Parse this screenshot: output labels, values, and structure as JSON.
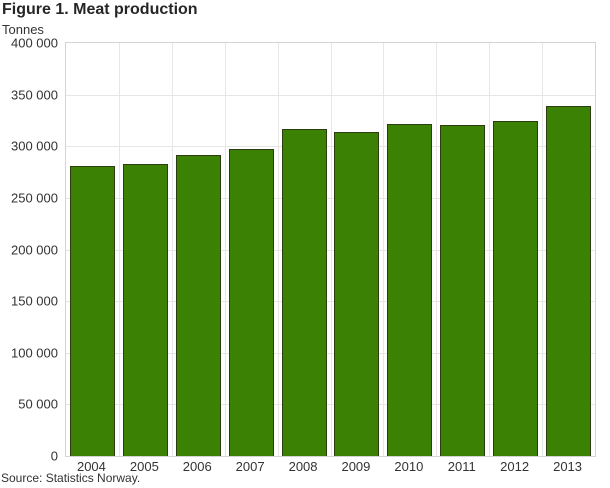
{
  "figure": {
    "title": "Figure 1. Meat production",
    "unit_label": "Tonnes",
    "source": "Source: Statistics Norway."
  },
  "chart_data": {
    "type": "bar",
    "title": "Figure 1. Meat production",
    "xlabel": "",
    "ylabel": "Tonnes",
    "categories": [
      "2004",
      "2005",
      "2006",
      "2007",
      "2008",
      "2009",
      "2010",
      "2011",
      "2012",
      "2013"
    ],
    "values": [
      281000,
      283000,
      292000,
      297000,
      317000,
      314000,
      322000,
      321000,
      324000,
      339000
    ],
    "ylim": [
      0,
      400000
    ],
    "ytick_step": 50000,
    "ytick_labels": [
      "0",
      "50 000",
      "100 000",
      "150 000",
      "200 000",
      "250 000",
      "300 000",
      "350 000",
      "400 000"
    ],
    "grid": "both",
    "legend": "none",
    "bar_color": "#3a8104",
    "bar_border_color": "#2e3d0f",
    "grid_color": "#e6e6e6",
    "plot_border_color": "#d4d4d4",
    "source": "Source: Statistics Norway."
  }
}
